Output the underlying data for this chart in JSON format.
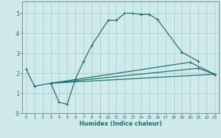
{
  "xlabel": "Humidex (Indice chaleur)",
  "bg_color": "#ceeaea",
  "grid_color": "#aacece",
  "line_color": "#1a6b6b",
  "xlim": [
    -0.5,
    23.5
  ],
  "ylim": [
    0,
    5.6
  ],
  "xticks": [
    0,
    1,
    2,
    3,
    4,
    5,
    6,
    7,
    8,
    9,
    10,
    11,
    12,
    13,
    14,
    15,
    16,
    17,
    18,
    19,
    20,
    21,
    22,
    23
  ],
  "yticks": [
    0,
    1,
    2,
    3,
    4,
    5
  ],
  "curve1_x": [
    0,
    1,
    3,
    4,
    5,
    6,
    7,
    8,
    10,
    11,
    12,
    13,
    14,
    15,
    16,
    19,
    21
  ],
  "curve1_y": [
    2.2,
    1.35,
    1.5,
    0.55,
    0.45,
    1.7,
    2.6,
    3.4,
    4.65,
    4.65,
    5.0,
    5.0,
    4.95,
    4.95,
    4.7,
    3.05,
    2.6
  ],
  "line2_x": [
    3,
    23
  ],
  "line2_y": [
    1.5,
    1.95
  ],
  "line3_x": [
    3,
    20,
    23
  ],
  "line3_y": [
    1.5,
    2.55,
    1.95
  ],
  "line4_x": [
    3,
    21,
    23
  ],
  "line4_y": [
    1.5,
    2.25,
    1.95
  ]
}
